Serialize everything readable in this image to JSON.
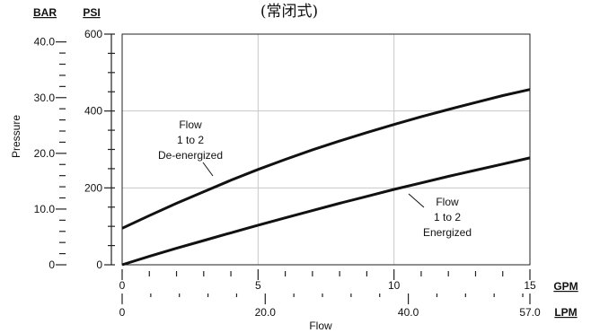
{
  "chart_data": {
    "type": "line",
    "title": "(常闭式)",
    "xlabel": "Flow",
    "ylabel": "Pressure",
    "x_axis_primary": {
      "unit": "GPM",
      "range": [
        0,
        15
      ],
      "tick_values": [
        0,
        5,
        10,
        15
      ],
      "tick_labels": [
        "0",
        "5",
        "10",
        "15"
      ]
    },
    "x_axis_secondary": {
      "unit": "LPM",
      "range": [
        0,
        57.0
      ],
      "tick_values": [
        0,
        20.0,
        40.0,
        57.0
      ],
      "tick_labels": [
        "0",
        "20.0",
        "40.0",
        "57.0"
      ]
    },
    "y_axis_primary": {
      "unit": "PSI",
      "range": [
        0,
        600
      ],
      "tick_values": [
        0,
        200,
        400,
        600
      ],
      "tick_labels": [
        "0",
        "200",
        "400",
        "600"
      ]
    },
    "y_axis_secondary": {
      "unit": "BAR",
      "range": [
        0,
        41.4
      ],
      "tick_values": [
        0,
        10.0,
        20.0,
        30.0,
        40.0
      ],
      "tick_labels": [
        "0",
        "10.0",
        "20.0",
        "30.0",
        "40.0"
      ]
    },
    "grid": true,
    "series": [
      {
        "name": "Flow 1 to 2 De-energized",
        "label_lines": [
          "Flow",
          "1 to 2",
          "De-energized"
        ],
        "x": [
          0,
          1,
          2,
          3,
          4,
          5,
          6,
          7,
          8,
          9,
          10,
          11,
          12,
          13,
          14,
          15
        ],
        "y": [
          95,
          128,
          160,
          190,
          220,
          248,
          274,
          299,
          322,
          344,
          365,
          385,
          404,
          422,
          440,
          456
        ]
      },
      {
        "name": "Flow 1 to 2 Energized",
        "label_lines": [
          "Flow",
          "1 to 2",
          "Energized"
        ],
        "x": [
          0,
          1,
          2,
          3,
          4,
          5,
          6,
          7,
          8,
          9,
          10,
          11,
          12,
          13,
          14,
          15
        ],
        "y": [
          0,
          22,
          43,
          63,
          83,
          103,
          122,
          141,
          160,
          178,
          196,
          213,
          230,
          246,
          262,
          278
        ]
      }
    ]
  }
}
